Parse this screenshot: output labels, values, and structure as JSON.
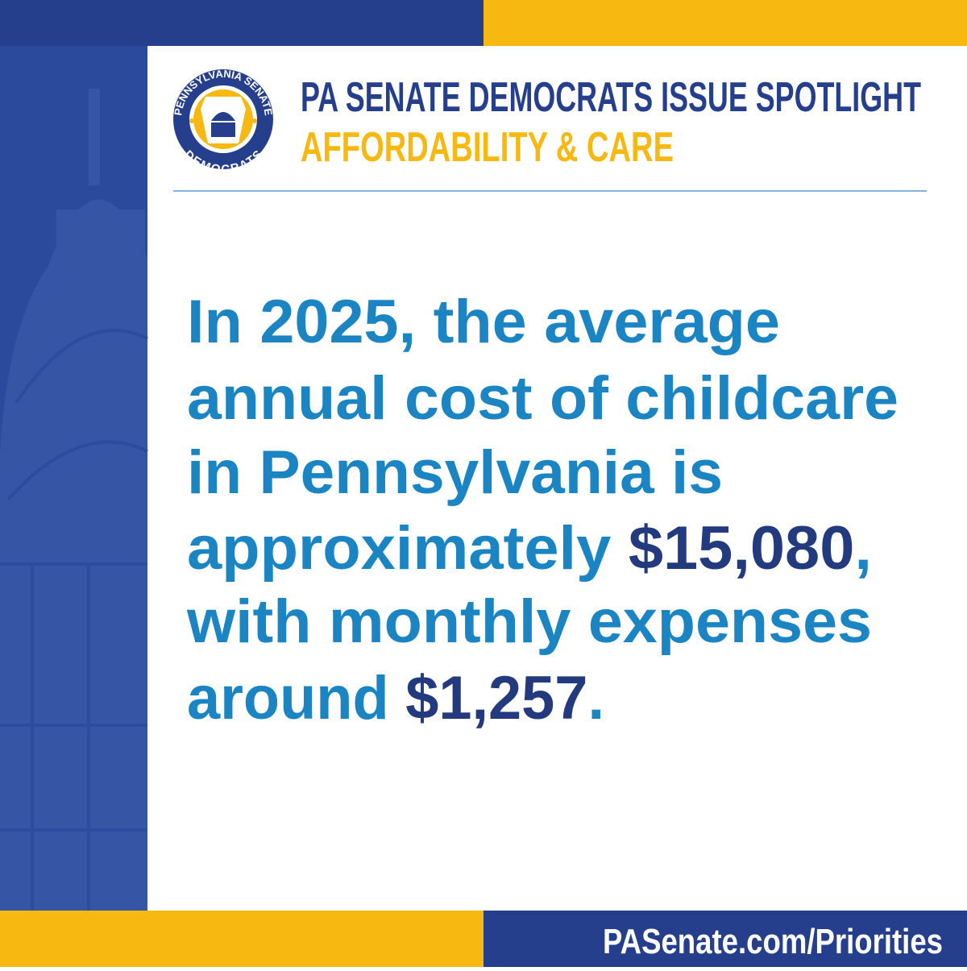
{
  "header": {
    "title": "PA SENATE DEMOCRATS ISSUE SPOTLIGHT",
    "subtitle": "AFFORDABILITY & CARE"
  },
  "logo": {
    "top_text": "PENNSYLVANIA SENATE",
    "bottom_text": "DEMOCRATS"
  },
  "body": {
    "lines": [
      [
        "In 2025, the average"
      ],
      [
        "annual cost of childcare"
      ],
      [
        "in Pennsylvania is"
      ],
      [
        "approximately ",
        "$15,080",
        ","
      ],
      [
        "with monthly expenses"
      ],
      [
        "around ",
        "$1,257",
        "."
      ]
    ]
  },
  "footer": {
    "url": "PASenate.com/Priorities"
  }
}
